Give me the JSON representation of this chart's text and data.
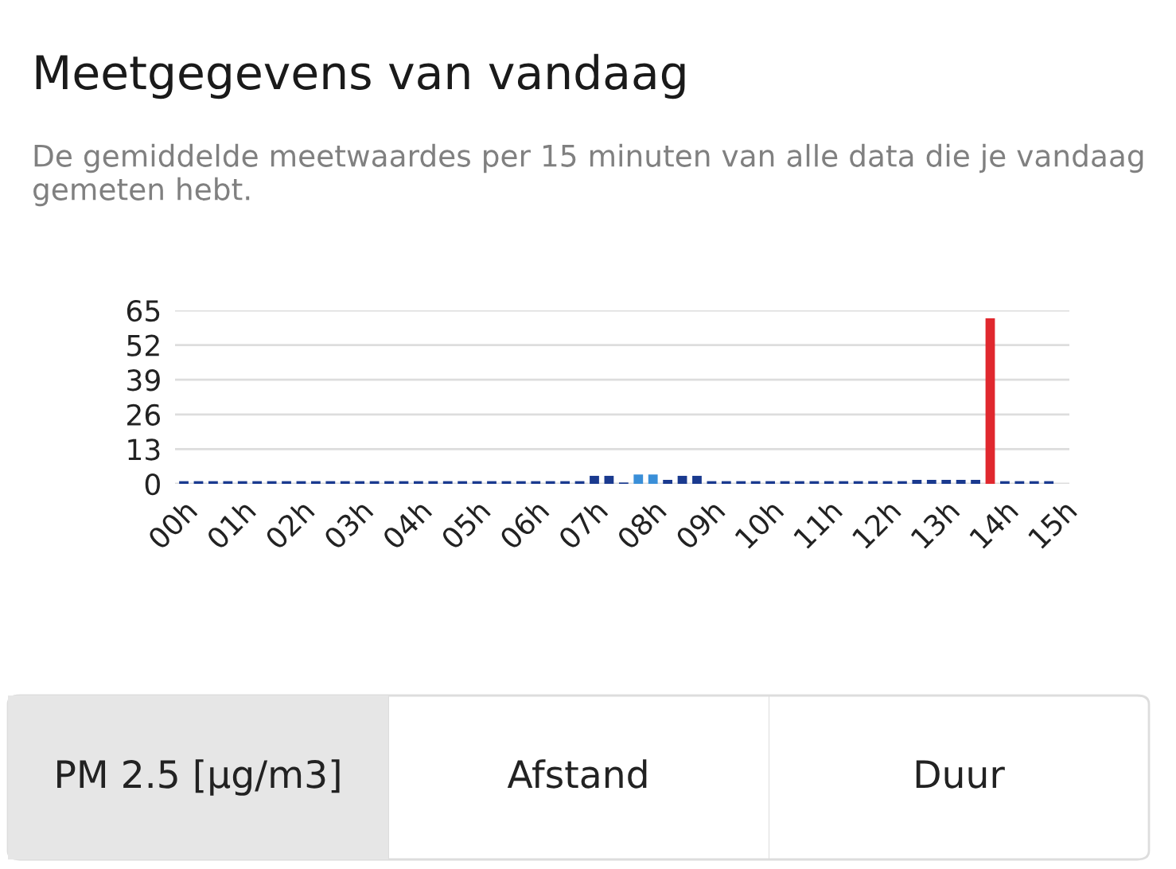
{
  "chart_data": {
    "type": "bar",
    "title": "Meetgegevens van vandaag",
    "subtitle": "De gemiddelde meetwaardes per 15 minuten van alle data die je vandaag gemeten hebt.",
    "x": [
      0,
      0.25,
      0.5,
      0.75,
      1,
      1.25,
      1.5,
      1.75,
      2,
      2.25,
      2.5,
      2.75,
      3,
      3.25,
      3.5,
      3.75,
      4,
      4.25,
      4.5,
      4.75,
      5,
      5.25,
      5.5,
      5.75,
      6,
      6.25,
      6.5,
      6.75,
      7,
      7.25,
      7.5,
      7.75,
      8,
      8.25,
      8.5,
      8.75,
      9,
      9.25,
      9.5,
      9.75,
      10,
      10.25,
      10.5,
      10.75,
      11,
      11.25,
      11.5,
      11.75,
      12,
      12.25,
      12.5,
      12.75,
      13,
      13.25,
      13.5,
      13.75,
      14,
      14.25,
      14.5,
      14.75
    ],
    "values": [
      1,
      1,
      1,
      1,
      1,
      1,
      1,
      1,
      1,
      1,
      1,
      1,
      1,
      1,
      1,
      1,
      1,
      1,
      1,
      1,
      1,
      1,
      1,
      1,
      1,
      1,
      1,
      1,
      3,
      3,
      0.5,
      3.5,
      3.5,
      1.5,
      3,
      3,
      1,
      1,
      1,
      1,
      1,
      1,
      1,
      1,
      1,
      1,
      1,
      1,
      1,
      1,
      1.5,
      1.5,
      1.5,
      1.5,
      1.5,
      62,
      1,
      1,
      1,
      1
    ],
    "colors": [
      "#1a3a8f",
      "#1a3a8f",
      "#1a3a8f",
      "#1a3a8f",
      "#1a3a8f",
      "#1a3a8f",
      "#1a3a8f",
      "#1a3a8f",
      "#1a3a8f",
      "#1a3a8f",
      "#1a3a8f",
      "#1a3a8f",
      "#1a3a8f",
      "#1a3a8f",
      "#1a3a8f",
      "#1a3a8f",
      "#1a3a8f",
      "#1a3a8f",
      "#1a3a8f",
      "#1a3a8f",
      "#1a3a8f",
      "#1a3a8f",
      "#1a3a8f",
      "#1a3a8f",
      "#1a3a8f",
      "#1a3a8f",
      "#1a3a8f",
      "#1a3a8f",
      "#1a3a8f",
      "#1a3a8f",
      "#1a3a8f",
      "#3a8fd8",
      "#3a8fd8",
      "#1a3a8f",
      "#1a3a8f",
      "#1a3a8f",
      "#1a3a8f",
      "#1a3a8f",
      "#1a3a8f",
      "#1a3a8f",
      "#1a3a8f",
      "#1a3a8f",
      "#1a3a8f",
      "#1a3a8f",
      "#1a3a8f",
      "#1a3a8f",
      "#1a3a8f",
      "#1a3a8f",
      "#1a3a8f",
      "#1a3a8f",
      "#1a3a8f",
      "#1a3a8f",
      "#1a3a8f",
      "#1a3a8f",
      "#1a3a8f",
      "#e0282e",
      "#1a3a8f",
      "#1a3a8f",
      "#1a3a8f",
      "#1a3a8f"
    ],
    "xlim": [
      -0.15,
      15.1
    ],
    "xticks": [
      {
        "value": 0,
        "label": "00h"
      },
      {
        "value": 1,
        "label": "01h"
      },
      {
        "value": 2,
        "label": "02h"
      },
      {
        "value": 3,
        "label": "03h"
      },
      {
        "value": 4,
        "label": "04h"
      },
      {
        "value": 5,
        "label": "05h"
      },
      {
        "value": 6,
        "label": "06h"
      },
      {
        "value": 7,
        "label": "07h"
      },
      {
        "value": 8,
        "label": "08h"
      },
      {
        "value": 9,
        "label": "09h"
      },
      {
        "value": 10,
        "label": "10h"
      },
      {
        "value": 11,
        "label": "11h"
      },
      {
        "value": 12,
        "label": "12h"
      },
      {
        "value": 13,
        "label": "13h"
      },
      {
        "value": 14,
        "label": "14h"
      },
      {
        "value": 15,
        "label": "15h"
      }
    ],
    "ylim": [
      0,
      65
    ],
    "yticks": [
      0,
      13,
      26,
      39,
      52,
      65
    ],
    "grid": "y",
    "annotations": [
      "PM 2.5 [µg/m3]",
      "Afstand",
      "Duur"
    ]
  }
}
